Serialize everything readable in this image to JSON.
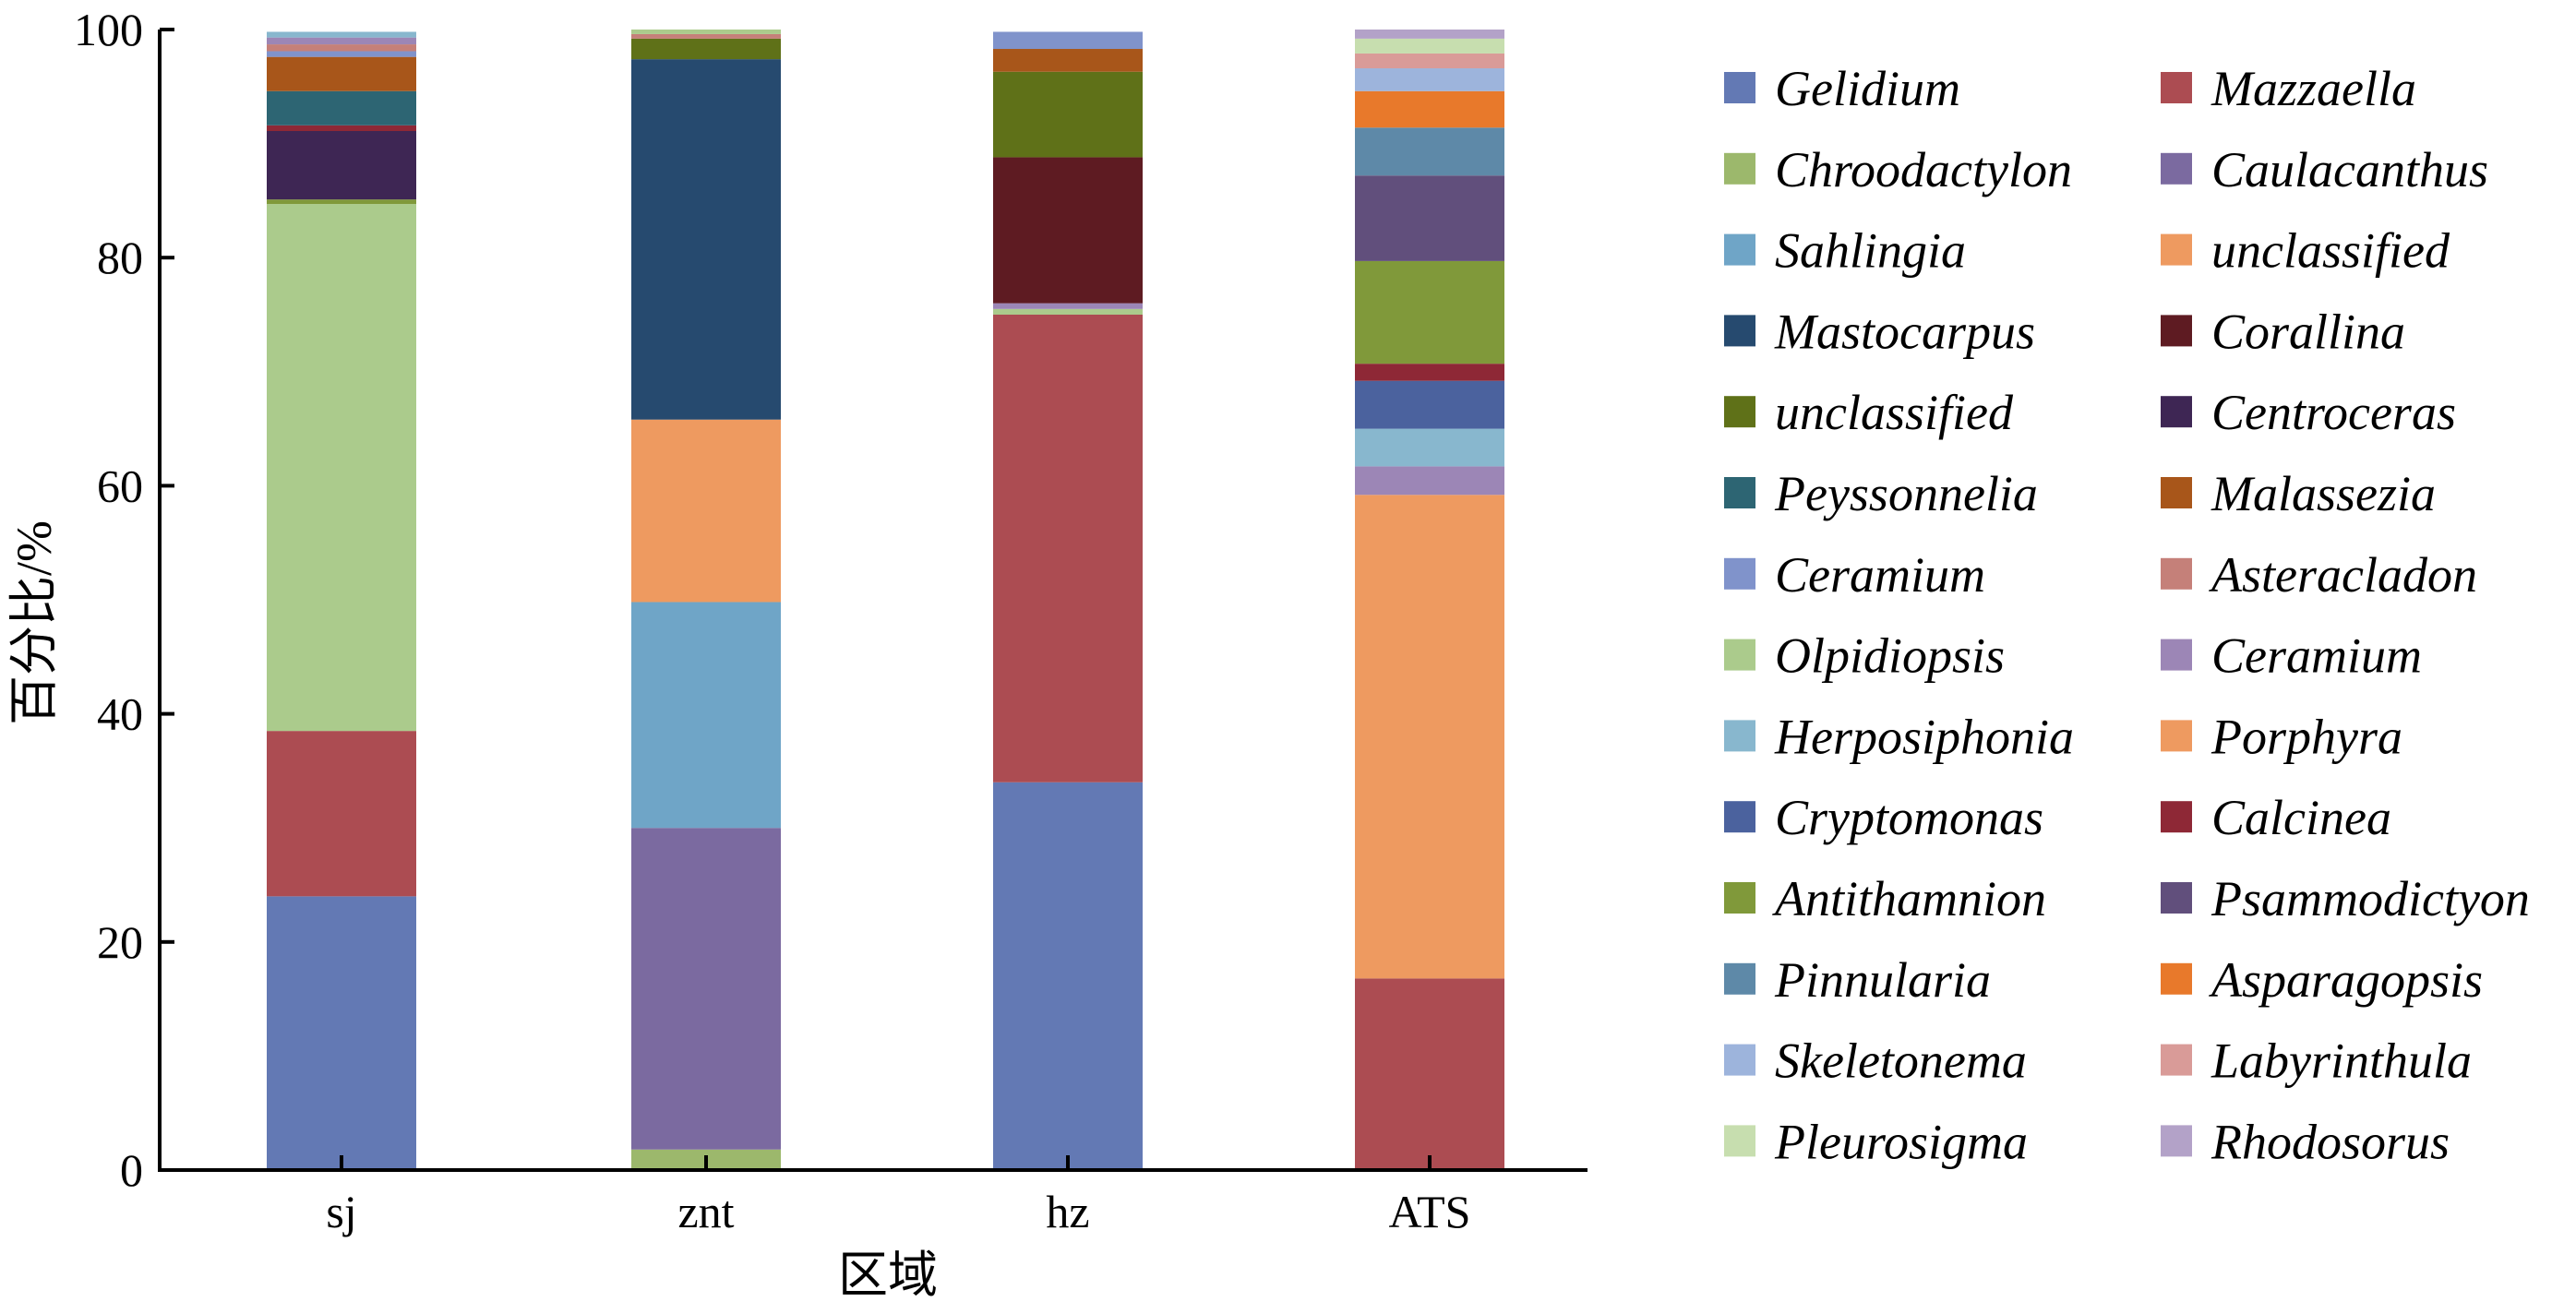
{
  "chart_data": {
    "type": "bar",
    "stacked": true,
    "xlabel": "区域",
    "ylabel": "百分比/%",
    "ylim": [
      0,
      100
    ],
    "yticks": [
      0,
      20,
      40,
      60,
      80,
      100
    ],
    "categories": [
      "sj",
      "znt",
      "hz",
      "ATS"
    ],
    "legend_position": "right",
    "series": [
      {
        "name": "Gelidium",
        "color": "#6379b4",
        "values": [
          24,
          0,
          34,
          0
        ]
      },
      {
        "name": "Mazzaella",
        "color": "#ac4c52",
        "values": [
          14.5,
          0,
          41,
          16.8
        ]
      },
      {
        "name": "Chroodactylon",
        "color": "#9cb86c",
        "values": [
          0,
          1.8,
          0,
          0
        ]
      },
      {
        "name": "Caulacanthus",
        "color": "#7b6aa0",
        "values": [
          0,
          28.2,
          0,
          0
        ]
      },
      {
        "name": "Sahlingia",
        "color": "#6fa5c7",
        "values": [
          0,
          19.8,
          0,
          0
        ]
      },
      {
        "name": "unclassified",
        "color": "#ee9a60",
        "values": [
          0,
          16,
          0,
          0
        ]
      },
      {
        "name": "Mastocarpus",
        "color": "#264a6f",
        "values": [
          0,
          31.6,
          0,
          0
        ]
      },
      {
        "name": "Corallina",
        "color": "#5e1b22",
        "values": [
          0,
          0,
          12.8,
          0
        ]
      },
      {
        "name": "unclassified",
        "color": "#5f7118",
        "values": [
          0,
          1.8,
          7.5,
          0
        ]
      },
      {
        "name": "Centroceras",
        "color": "#3e2654",
        "values": [
          6,
          0,
          0,
          0
        ]
      },
      {
        "name": "Peyssonnelia",
        "color": "#2d6573",
        "values": [
          3,
          0,
          0,
          0
        ]
      },
      {
        "name": "Malassezia",
        "color": "#a8561a",
        "values": [
          3,
          0,
          2,
          0
        ]
      },
      {
        "name": "Ceramium",
        "color": "#8093cb",
        "values": [
          0.5,
          0,
          1.5,
          0
        ]
      },
      {
        "name": "Asteracladon",
        "color": "#c58079",
        "values": [
          0.6,
          0.4,
          0,
          0
        ]
      },
      {
        "name": "Olpidiopsis",
        "color": "#abcb8c",
        "values": [
          46.2,
          0.4,
          0.5,
          0
        ]
      },
      {
        "name": "Ceramium",
        "color": "#9c86b6",
        "values": [
          0.6,
          0,
          0.5,
          2.5
        ]
      },
      {
        "name": "Herposiphonia",
        "color": "#88b7ce",
        "values": [
          0.5,
          0,
          0,
          3.3
        ]
      },
      {
        "name": "Porphyra",
        "color": "#ee9a60",
        "values": [
          0,
          0,
          0,
          42.4
        ]
      },
      {
        "name": "Cryptomonas",
        "color": "#4b629e",
        "values": [
          0,
          0,
          0,
          4.2
        ]
      },
      {
        "name": "Calcinea",
        "color": "#8e2836",
        "values": [
          0.5,
          0,
          0,
          1.5
        ]
      },
      {
        "name": "Antithamnion",
        "color": "#80993a",
        "values": [
          0.4,
          0,
          0,
          9
        ]
      },
      {
        "name": "Psammodictyon",
        "color": "#614f7c",
        "values": [
          0,
          0,
          0,
          7.5
        ]
      },
      {
        "name": "Pinnularia",
        "color": "#5e89a8",
        "values": [
          0,
          0,
          0,
          4.2
        ]
      },
      {
        "name": "Asparagopsis",
        "color": "#e8792b",
        "values": [
          0,
          0,
          0,
          3.2
        ]
      },
      {
        "name": "Skeletonema",
        "color": "#9db4dc",
        "values": [
          0,
          0,
          0,
          2
        ]
      },
      {
        "name": "Labyrinthula",
        "color": "#d99b98",
        "values": [
          0,
          0,
          0,
          1.3
        ]
      },
      {
        "name": "Pleurosigma",
        "color": "#c7deaf",
        "values": [
          0,
          0,
          0,
          1.3
        ]
      },
      {
        "name": "Rhodosorus",
        "color": "#b3a2c8",
        "values": [
          0,
          0,
          0,
          0.8
        ]
      }
    ],
    "stack_order": [
      [
        0,
        1,
        14,
        20,
        9,
        19,
        10,
        11,
        12,
        13,
        15,
        16
      ],
      [
        2,
        3,
        4,
        5,
        6,
        8,
        13,
        14
      ],
      [
        0,
        1,
        14,
        15,
        7,
        8,
        11,
        12
      ],
      [
        1,
        17,
        15,
        16,
        18,
        19,
        20,
        21,
        22,
        23,
        24,
        25,
        26,
        27
      ]
    ]
  }
}
